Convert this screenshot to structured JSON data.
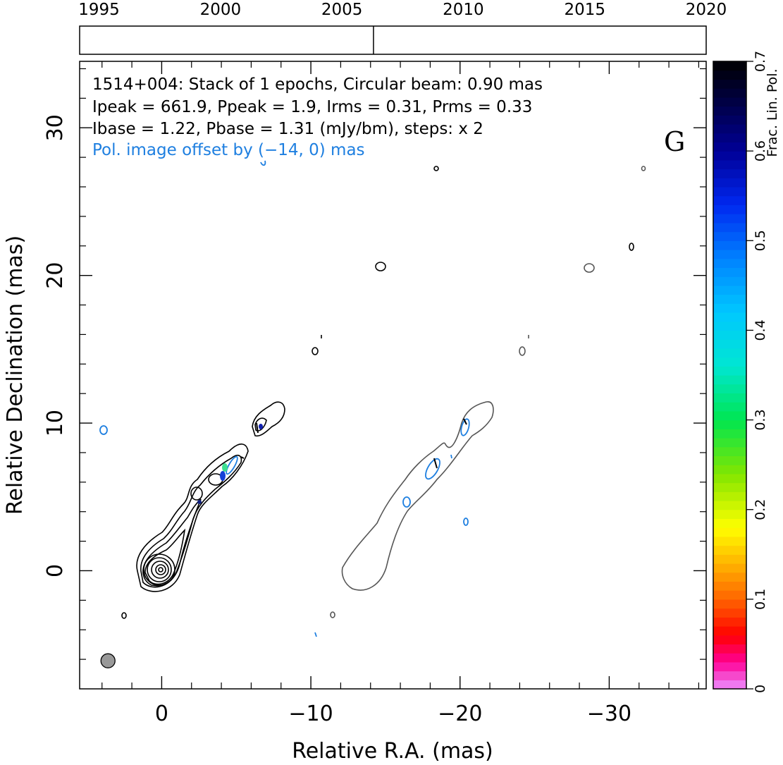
{
  "chart_data": {
    "type": "contour",
    "source": "1514+004",
    "annotations": [
      {
        "text": "1514+004: Stack of 1 epochs, Circular beam: 0.90 mas",
        "color": "#000000"
      },
      {
        "text": "Ipeak = 661.9, Ppeak = 1.9, Irms = 0.31, Prms = 0.33",
        "color": "#000000"
      },
      {
        "text": "Ibase = 1.22, Pbase = 1.31 (mJy/bm), steps: x 2",
        "color": "#000000"
      },
      {
        "text": "Pol. image offset by (−14, 0) mas",
        "color": "#1e7fe0"
      }
    ],
    "panel_label": "G",
    "xlabel": "Relative R.A. (mas)",
    "ylabel": "Relative Declination (mas)",
    "xlim": [
      5.5,
      -36.5
    ],
    "ylim": [
      -8,
      34.5
    ],
    "x_ticks": [
      0,
      -10,
      -20,
      -30
    ],
    "x_tick_labels": [
      "0",
      "−10",
      "−20",
      "−30"
    ],
    "y_ticks": [
      0,
      10,
      20,
      30
    ],
    "y_tick_labels": [
      "0",
      "10",
      "20",
      "30"
    ],
    "timeline": {
      "xlim": [
        1994.2,
        2020.0
      ],
      "tick_years": [
        1995,
        2000,
        2005,
        2010,
        2015,
        2020
      ],
      "tick_labels": [
        "1995",
        "2000",
        "2005",
        "2010",
        "2015",
        "2020"
      ],
      "epochs": [
        2006.3
      ]
    },
    "colorbar": {
      "label": "Frac. Lin. Pol.",
      "range": [
        0,
        0.7
      ],
      "ticks": [
        0,
        0.1,
        0.2,
        0.3,
        0.4,
        0.5,
        0.6,
        0.7
      ],
      "tick_labels": [
        "0",
        "0.1",
        "0.2",
        "0.3",
        "0.4",
        "0.5",
        "0.6",
        "0.7"
      ]
    },
    "beam_fwhm_mas": 0.9,
    "beam_position_mas": [
      3.6,
      -6.1
    ],
    "pol_offset_mas": [
      -14,
      0
    ],
    "colors": {
      "stokes_i_contours": "#000000",
      "pol_outline": "#555555",
      "pol_vectors": "#1e7fe0",
      "beam_fill": "#999999"
    }
  }
}
